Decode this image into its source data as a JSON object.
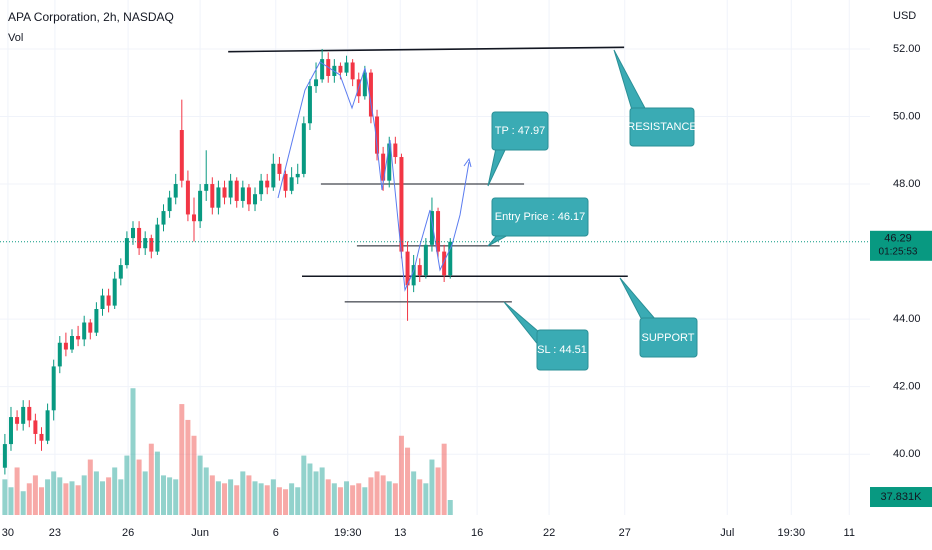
{
  "chart_data": {
    "type": "candlestick",
    "title": "APA Corporation, 2h, NASDAQ",
    "indicator": "Vol",
    "currency": "USD",
    "countdown": "01:25:53",
    "last_volume_label": "37.831K",
    "up_color": "#089981",
    "down_color": "#f23645",
    "volume_up_color": "#26a69a",
    "volume_down_color": "#ef5350",
    "grid": true,
    "xlim": [
      -0.8,
      141.8
    ],
    "ylim": [
      38.2,
      53.45
    ],
    "vlim": [
      0,
      1300000
    ],
    "xticks": [
      {
        "value": 0.5,
        "label": "30"
      },
      {
        "value": 8.2,
        "label": "23"
      },
      {
        "value": 20.2,
        "label": "26"
      },
      {
        "value": 32,
        "label": "Jun"
      },
      {
        "value": 44.4,
        "label": "6"
      },
      {
        "value": 56.2,
        "label": "19:30"
      },
      {
        "value": 64.8,
        "label": "13"
      },
      {
        "value": 77.4,
        "label": "16"
      },
      {
        "value": 89.2,
        "label": "22"
      },
      {
        "value": 101.6,
        "label": "27"
      },
      {
        "value": 118.4,
        "label": "Jul"
      },
      {
        "value": 128.9,
        "label": "19:30"
      },
      {
        "value": 138.4,
        "label": "11"
      }
    ],
    "yticks": [
      {
        "value": 40,
        "label": "40.00"
      },
      {
        "value": 42,
        "label": "42.00"
      },
      {
        "value": 44,
        "label": "44.00"
      },
      {
        "value": 48,
        "label": "48.00"
      },
      {
        "value": 50,
        "label": "50.00"
      },
      {
        "value": 52,
        "label": "52.00"
      }
    ],
    "open": [
      39.6,
      40.3,
      41.1,
      40.9,
      41.4,
      41.0,
      40.6,
      40.4,
      41.3,
      42.6,
      43.3,
      43.1,
      43.5,
      43.4,
      43.9,
      43.6,
      44.3,
      44.7,
      44.4,
      45.2,
      45.6,
      46.4,
      46.7,
      46.1,
      46.4,
      46.0,
      46.8,
      47.2,
      47.6,
      49.6,
      48.1,
      47.1,
      46.9,
      47.8,
      48.0,
      47.3,
      47.9,
      47.6,
      48.1,
      47.5,
      47.9,
      47.4,
      47.7,
      48.1,
      47.9,
      48.6,
      48.3,
      47.8,
      48.2,
      48.3,
      49.8,
      50.9,
      51.1,
      51.7,
      51.2,
      51.5,
      51.3,
      51.6,
      51.1,
      50.6,
      51.3,
      50.0,
      48.9,
      48.1,
      49.2,
      48.8,
      46.0,
      45.0,
      45.6,
      45.3,
      46.2,
      47.2,
      46.0,
      45.3
    ],
    "high": [
      40.6,
      41.4,
      41.3,
      41.6,
      41.6,
      41.2,
      40.8,
      41.5,
      42.8,
      43.5,
      43.6,
      43.7,
      43.8,
      44.1,
      44.0,
      44.5,
      44.9,
      44.9,
      45.4,
      45.8,
      46.6,
      46.9,
      46.9,
      46.6,
      46.5,
      47.0,
      47.4,
      47.8,
      48.3,
      50.5,
      48.4,
      47.6,
      48.0,
      49.0,
      48.2,
      48.1,
      48.1,
      48.3,
      48.2,
      48.1,
      48.0,
      47.9,
      48.3,
      48.3,
      48.9,
      48.8,
      48.4,
      48.5,
      48.6,
      50.0,
      51.1,
      51.6,
      52.0,
      51.9,
      51.7,
      51.6,
      51.8,
      51.7,
      51.3,
      51.5,
      51.4,
      50.2,
      49.1,
      49.4,
      49.4,
      48.9,
      46.3,
      45.9,
      45.8,
      46.4,
      47.6,
      47.3,
      46.2,
      46.4
    ],
    "low": [
      39.4,
      40.1,
      40.7,
      40.7,
      40.8,
      40.3,
      40.1,
      40.3,
      41.0,
      42.4,
      42.9,
      43.0,
      43.2,
      43.2,
      43.4,
      43.5,
      44.1,
      44.2,
      44.3,
      45.0,
      45.5,
      46.2,
      45.9,
      45.9,
      45.8,
      45.9,
      46.6,
      47.0,
      47.4,
      47.9,
      46.9,
      46.3,
      46.7,
      47.5,
      47.1,
      47.1,
      47.4,
      47.4,
      47.3,
      47.3,
      47.2,
      47.2,
      47.5,
      47.7,
      47.8,
      48.1,
      47.6,
      47.7,
      48.0,
      48.2,
      49.6,
      50.7,
      51.0,
      51.0,
      51.0,
      51.1,
      51.2,
      50.9,
      50.4,
      50.5,
      49.8,
      48.7,
      47.8,
      47.9,
      48.6,
      45.8,
      43.95,
      44.8,
      45.1,
      45.2,
      46.0,
      45.8,
      45.1,
      45.2
    ],
    "close": [
      40.3,
      41.1,
      40.9,
      41.4,
      41.0,
      40.6,
      40.4,
      41.3,
      42.6,
      43.3,
      43.1,
      43.5,
      43.4,
      43.9,
      43.6,
      44.3,
      44.7,
      44.4,
      45.2,
      45.6,
      46.4,
      46.7,
      46.1,
      46.4,
      46.0,
      46.8,
      47.2,
      47.6,
      48.0,
      48.1,
      47.1,
      46.9,
      47.8,
      48.0,
      47.3,
      47.9,
      47.6,
      48.1,
      47.5,
      47.9,
      47.4,
      47.7,
      48.1,
      47.9,
      48.6,
      48.3,
      47.8,
      48.2,
      48.3,
      49.8,
      50.9,
      51.1,
      51.7,
      51.2,
      51.5,
      51.3,
      51.6,
      51.1,
      50.6,
      51.3,
      50.0,
      48.9,
      48.1,
      49.2,
      48.8,
      46.0,
      45.0,
      45.6,
      45.3,
      46.2,
      47.2,
      46.0,
      45.3,
      46.29
    ],
    "volume": [
      90000,
      70000,
      120000,
      60000,
      80000,
      100000,
      70000,
      90000,
      110000,
      95000,
      80000,
      85000,
      75000,
      100000,
      140000,
      110000,
      85000,
      95000,
      120000,
      90000,
      150000,
      320000,
      140000,
      110000,
      180000,
      160000,
      100000,
      95000,
      90000,
      280000,
      240000,
      200000,
      150000,
      120000,
      100000,
      85000,
      80000,
      90000,
      75000,
      110000,
      100000,
      85000,
      80000,
      75000,
      90000,
      70000,
      65000,
      80000,
      70000,
      150000,
      130000,
      110000,
      120000,
      90000,
      80000,
      70000,
      85000,
      75000,
      80000,
      70000,
      95000,
      110000,
      100000,
      85000,
      80000,
      200000,
      170000,
      110000,
      90000,
      80000,
      140000,
      120000,
      180000,
      37831
    ],
    "levels": [
      {
        "x": [
          36.6,
          101.5
        ],
        "y": [
          51.92,
          52.05
        ]
      },
      {
        "x": [
          51.8,
          85.1
        ],
        "y": [
          48.0,
          48.0
        ]
      },
      {
        "x": [
          57.7,
          81.1
        ],
        "y": [
          46.17,
          46.17
        ]
      },
      {
        "x": [
          48.7,
          102.1
        ],
        "y": [
          45.27,
          45.27
        ]
      },
      {
        "x": [
          55.7,
          83.1
        ],
        "y": [
          44.51,
          44.51
        ]
      }
    ],
    "annotations": [
      "TP : 47.97",
      "Entry Price : 46.17",
      "SL : 44.51",
      "RESISTANCE",
      "SUPPORT"
    ]
  }
}
